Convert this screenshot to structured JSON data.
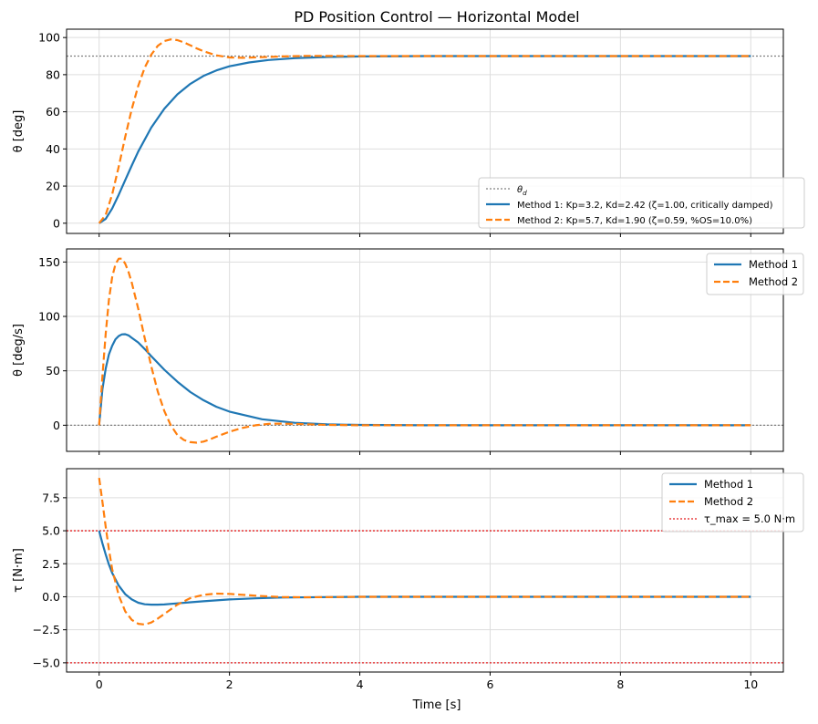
{
  "figure": {
    "title": "PD Position Control — Horizontal Model",
    "xlabel": "Time [s]"
  },
  "colors": {
    "method1": "#1f77b4",
    "method2": "#ff7f0e",
    "reference": "#808080",
    "limit": "#e31a1c",
    "grid": "#dddddd"
  },
  "chart_data": [
    {
      "type": "line",
      "title": "PD Position Control — Horizontal Model",
      "ylabel": "θ  [deg]",
      "xlim": [
        -0.5,
        10.5
      ],
      "ylim": [
        -5.5,
        104.5
      ],
      "xticks": [
        0,
        2,
        4,
        6,
        8,
        10
      ],
      "yticks": [
        0,
        20,
        40,
        60,
        80,
        100
      ],
      "grid": true,
      "legend_position": "lower-right",
      "reference_lines": [
        {
          "name": "θd",
          "label_main": "θ",
          "label_sub": "d",
          "y": 90,
          "style": "dotted",
          "color": "#808080"
        }
      ],
      "series": [
        {
          "name": "Method 1: Kp=3.2, Kd=2.42  (ζ=1.00, critically damped)",
          "style": "solid",
          "color": "#1f77b4",
          "x": [
            0,
            0.1,
            0.2,
            0.3,
            0.4,
            0.5,
            0.6,
            0.8,
            1.0,
            1.2,
            1.4,
            1.6,
            1.8,
            2.0,
            2.3,
            2.6,
            3.0,
            3.5,
            4.0,
            5.0,
            6.0,
            7.0,
            8.0,
            9.0,
            10.0
          ],
          "y": [
            0,
            2.3,
            7.9,
            15.3,
            23.2,
            31.1,
            38.6,
            51.5,
            61.7,
            69.4,
            75.1,
            79.3,
            82.3,
            84.5,
            86.6,
            87.9,
            88.9,
            89.5,
            89.8,
            90,
            90,
            90,
            90,
            90,
            90
          ]
        },
        {
          "name": "Method 2: Kp=5.7, Kd=1.90  (ζ=0.59, %OS=10.0%)",
          "style": "dashed",
          "color": "#ff7f0e",
          "x": [
            0,
            0.1,
            0.2,
            0.3,
            0.4,
            0.5,
            0.6,
            0.7,
            0.8,
            0.9,
            1.0,
            1.1,
            1.2,
            1.3,
            1.4,
            1.5,
            1.6,
            1.8,
            2.0,
            2.2,
            2.5,
            2.8,
            3.2,
            4.0,
            5.0,
            6.0,
            7.0,
            8.0,
            9.0,
            10.0
          ],
          "y": [
            0,
            4.5,
            15.5,
            30.5,
            46.5,
            61.5,
            74,
            83.8,
            90.8,
            95.5,
            98.1,
            99,
            98.6,
            97.4,
            95.8,
            94.1,
            92.6,
            90.4,
            89.3,
            89.1,
            89.4,
            89.8,
            90.1,
            90,
            90,
            90,
            90,
            90,
            90,
            90
          ]
        }
      ]
    },
    {
      "type": "line",
      "ylabel": "θ  [deg/s]",
      "xlim": [
        -0.5,
        10.5
      ],
      "ylim": [
        -24,
        162
      ],
      "xticks": [
        0,
        2,
        4,
        6,
        8,
        10
      ],
      "yticks": [
        0,
        50,
        100,
        150
      ],
      "grid": true,
      "legend_position": "top-right",
      "reference_lines": [
        {
          "y": 0,
          "style": "dotted",
          "color": "#808080"
        }
      ],
      "series": [
        {
          "name": "Method 1",
          "style": "solid",
          "color": "#1f77b4",
          "x": [
            0,
            0.05,
            0.1,
            0.15,
            0.2,
            0.25,
            0.3,
            0.35,
            0.4,
            0.45,
            0.5,
            0.6,
            0.7,
            0.8,
            1.0,
            1.2,
            1.4,
            1.6,
            1.8,
            2.0,
            2.5,
            3.0,
            3.5,
            4.0,
            5.0,
            6.0,
            7.0,
            8.0,
            9.0,
            10.0
          ],
          "y": [
            0,
            33,
            52,
            65,
            73,
            79,
            82,
            83.5,
            83.7,
            82.6,
            80.3,
            76,
            70,
            63.5,
            51,
            40,
            30.5,
            23,
            17,
            12.5,
            5.5,
            2.2,
            0.8,
            0.3,
            0,
            0,
            0,
            0,
            0,
            0
          ]
        },
        {
          "name": "Method 2",
          "style": "dashed",
          "color": "#ff7f0e",
          "x": [
            0,
            0.05,
            0.1,
            0.15,
            0.2,
            0.25,
            0.3,
            0.35,
            0.4,
            0.45,
            0.5,
            0.6,
            0.7,
            0.8,
            0.9,
            1.0,
            1.1,
            1.2,
            1.3,
            1.4,
            1.5,
            1.6,
            1.7,
            1.8,
            2.0,
            2.2,
            2.4,
            2.6,
            2.8,
            3.0,
            3.5,
            4.0,
            5.0,
            6.0,
            7.0,
            8.0,
            9.0,
            10.0
          ],
          "y": [
            0,
            45,
            84,
            115,
            136,
            148,
            153,
            153,
            148.5,
            141,
            131,
            107,
            80,
            54,
            31,
            13,
            0,
            -9,
            -13.5,
            -15.5,
            -16,
            -15,
            -13,
            -10.5,
            -6,
            -2.5,
            0,
            1.3,
            1.5,
            1.2,
            0.3,
            0,
            0,
            0,
            0,
            0,
            0,
            0
          ]
        }
      ]
    },
    {
      "type": "line",
      "ylabel": "τ  [N·m]",
      "xlabel": "Time [s]",
      "xlim": [
        -0.5,
        10.5
      ],
      "ylim": [
        -5.7,
        9.7
      ],
      "xticks": [
        0,
        2,
        4,
        6,
        8,
        10
      ],
      "yticks": [
        -5.0,
        -2.5,
        0.0,
        2.5,
        5.0,
        7.5
      ],
      "grid": true,
      "legend_position": "top-right",
      "reference_lines": [
        {
          "name": "τ_max = 5.0 N·m",
          "y": 5.0,
          "style": "dotted",
          "color": "#e31a1c"
        },
        {
          "y": -5.0,
          "style": "dotted",
          "color": "#e31a1c"
        }
      ],
      "series": [
        {
          "name": "Method 1",
          "style": "solid",
          "color": "#1f77b4",
          "x": [
            0,
            0.05,
            0.1,
            0.15,
            0.2,
            0.3,
            0.4,
            0.5,
            0.6,
            0.7,
            0.8,
            0.9,
            1.0,
            1.2,
            1.4,
            1.6,
            1.8,
            2.0,
            2.4,
            2.8,
            3.5,
            4.0,
            5.0,
            6.0,
            7.0,
            8.0,
            9.0,
            10.0
          ],
          "y": [
            5.0,
            4.05,
            3.2,
            2.45,
            1.8,
            0.85,
            0.2,
            -0.2,
            -0.45,
            -0.57,
            -0.6,
            -0.6,
            -0.58,
            -0.5,
            -0.42,
            -0.34,
            -0.27,
            -0.2,
            -0.12,
            -0.06,
            -0.02,
            0,
            0,
            0,
            0,
            0,
            0,
            0
          ]
        },
        {
          "name": "Method 2",
          "style": "dashed",
          "color": "#ff7f0e",
          "x": [
            0,
            0.05,
            0.1,
            0.15,
            0.2,
            0.3,
            0.4,
            0.5,
            0.6,
            0.7,
            0.8,
            0.9,
            1.0,
            1.2,
            1.4,
            1.6,
            1.8,
            2.0,
            2.2,
            2.5,
            2.8,
            3.2,
            3.6,
            4.0,
            5.0,
            6.0,
            7.0,
            8.0,
            9.0,
            10.0
          ],
          "y": [
            9.0,
            7.2,
            5.3,
            3.6,
            2.1,
            0.1,
            -1.1,
            -1.75,
            -2.05,
            -2.1,
            -1.95,
            -1.65,
            -1.3,
            -0.6,
            -0.1,
            0.15,
            0.24,
            0.22,
            0.15,
            0.05,
            -0.02,
            -0.04,
            -0.02,
            0,
            0,
            0,
            0,
            0,
            0,
            0
          ]
        }
      ]
    }
  ]
}
